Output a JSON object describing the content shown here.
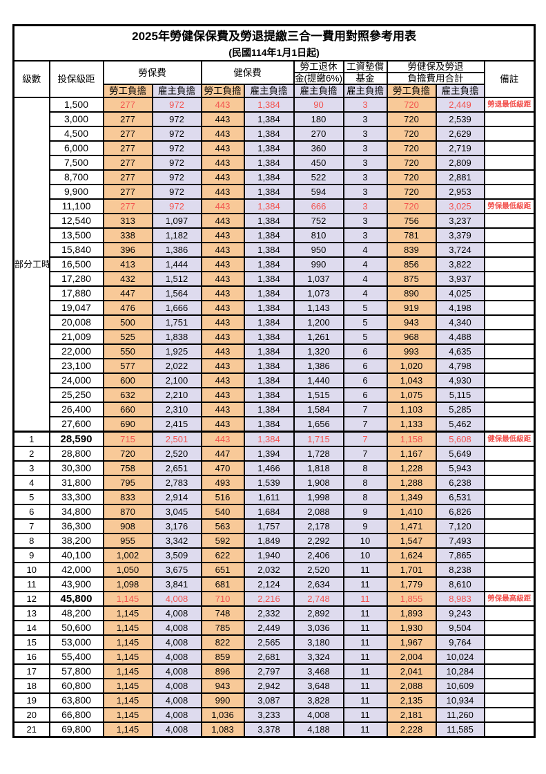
{
  "title": "2025年勞健保保費及勞退提繳三合一費用對照參考用表",
  "subtitle": "(民國114年1月1日起)",
  "header": {
    "level": "級數",
    "bracket": "投保級距",
    "labor_group": "勞保費",
    "health_group": "健保費",
    "pension_line1": "勞工退休",
    "pension_line2": "金(提繳6%)",
    "wage_line1": "工資墊償",
    "wage_line2": "基金",
    "total_line1": "勞健保及勞退",
    "total_line2": "負擔費用合計",
    "employee": "勞工負擔",
    "employer": "雇主負擔",
    "note": "備註"
  },
  "part_time_label": "部分工時",
  "colors": {
    "employee_bg": "#f8c998",
    "employer_bg": "#dedbee",
    "highlight_red": "#f2524e",
    "border": "#000000"
  },
  "rows": [
    {
      "level": "",
      "bracket": "1,500",
      "v": [
        "277",
        "972",
        "443",
        "1,384",
        "90",
        "3",
        "720",
        "2,449"
      ],
      "note": "勞退最低級距",
      "red": true
    },
    {
      "level": "",
      "bracket": "3,000",
      "v": [
        "277",
        "972",
        "443",
        "1,384",
        "180",
        "3",
        "720",
        "2,539"
      ],
      "note": ""
    },
    {
      "level": "",
      "bracket": "4,500",
      "v": [
        "277",
        "972",
        "443",
        "1,384",
        "270",
        "3",
        "720",
        "2,629"
      ],
      "note": ""
    },
    {
      "level": "",
      "bracket": "6,000",
      "v": [
        "277",
        "972",
        "443",
        "1,384",
        "360",
        "3",
        "720",
        "2,719"
      ],
      "note": ""
    },
    {
      "level": "",
      "bracket": "7,500",
      "v": [
        "277",
        "972",
        "443",
        "1,384",
        "450",
        "3",
        "720",
        "2,809"
      ],
      "note": ""
    },
    {
      "level": "",
      "bracket": "8,700",
      "v": [
        "277",
        "972",
        "443",
        "1,384",
        "522",
        "3",
        "720",
        "2,881"
      ],
      "note": ""
    },
    {
      "level": "",
      "bracket": "9,900",
      "v": [
        "277",
        "972",
        "443",
        "1,384",
        "594",
        "3",
        "720",
        "2,953"
      ],
      "note": ""
    },
    {
      "level": "",
      "bracket": "11,100",
      "v": [
        "277",
        "972",
        "443",
        "1,384",
        "666",
        "3",
        "720",
        "3,025"
      ],
      "note": "勞保最低級距",
      "red": true
    },
    {
      "level": "",
      "bracket": "12,540",
      "v": [
        "313",
        "1,097",
        "443",
        "1,384",
        "752",
        "3",
        "756",
        "3,237"
      ],
      "note": ""
    },
    {
      "level": "",
      "bracket": "13,500",
      "v": [
        "338",
        "1,182",
        "443",
        "1,384",
        "810",
        "3",
        "781",
        "3,379"
      ],
      "note": ""
    },
    {
      "level": "",
      "bracket": "15,840",
      "v": [
        "396",
        "1,386",
        "443",
        "1,384",
        "950",
        "4",
        "839",
        "3,724"
      ],
      "note": ""
    },
    {
      "level": "",
      "bracket": "16,500",
      "v": [
        "413",
        "1,444",
        "443",
        "1,384",
        "990",
        "4",
        "856",
        "3,822"
      ],
      "note": ""
    },
    {
      "level": "",
      "bracket": "17,280",
      "v": [
        "432",
        "1,512",
        "443",
        "1,384",
        "1,037",
        "4",
        "875",
        "3,937"
      ],
      "note": ""
    },
    {
      "level": "",
      "bracket": "17,880",
      "v": [
        "447",
        "1,564",
        "443",
        "1,384",
        "1,073",
        "4",
        "890",
        "4,025"
      ],
      "note": ""
    },
    {
      "level": "",
      "bracket": "19,047",
      "v": [
        "476",
        "1,666",
        "443",
        "1,384",
        "1,143",
        "5",
        "919",
        "4,198"
      ],
      "note": ""
    },
    {
      "level": "",
      "bracket": "20,008",
      "v": [
        "500",
        "1,751",
        "443",
        "1,384",
        "1,200",
        "5",
        "943",
        "4,340"
      ],
      "note": ""
    },
    {
      "level": "",
      "bracket": "21,009",
      "v": [
        "525",
        "1,838",
        "443",
        "1,384",
        "1,261",
        "5",
        "968",
        "4,488"
      ],
      "note": ""
    },
    {
      "level": "",
      "bracket": "22,000",
      "v": [
        "550",
        "1,925",
        "443",
        "1,384",
        "1,320",
        "6",
        "993",
        "4,635"
      ],
      "note": ""
    },
    {
      "level": "",
      "bracket": "23,100",
      "v": [
        "577",
        "2,022",
        "443",
        "1,384",
        "1,386",
        "6",
        "1,020",
        "4,798"
      ],
      "note": ""
    },
    {
      "level": "",
      "bracket": "24,000",
      "v": [
        "600",
        "2,100",
        "443",
        "1,384",
        "1,440",
        "6",
        "1,043",
        "4,930"
      ],
      "note": ""
    },
    {
      "level": "",
      "bracket": "25,250",
      "v": [
        "632",
        "2,210",
        "443",
        "1,384",
        "1,515",
        "6",
        "1,075",
        "5,115"
      ],
      "note": ""
    },
    {
      "level": "",
      "bracket": "26,400",
      "v": [
        "660",
        "2,310",
        "443",
        "1,384",
        "1,584",
        "7",
        "1,103",
        "5,285"
      ],
      "note": ""
    },
    {
      "level": "",
      "bracket": "27,600",
      "v": [
        "690",
        "2,415",
        "443",
        "1,384",
        "1,656",
        "7",
        "1,133",
        "5,462"
      ],
      "note": ""
    },
    {
      "level": "1",
      "bracket": "28,590",
      "v": [
        "715",
        "2,501",
        "443",
        "1,384",
        "1,715",
        "7",
        "1,158",
        "5,608"
      ],
      "note": "健保最低級距",
      "red": true,
      "bold": true,
      "thick_top": true
    },
    {
      "level": "2",
      "bracket": "28,800",
      "v": [
        "720",
        "2,520",
        "447",
        "1,394",
        "1,728",
        "7",
        "1,167",
        "5,649"
      ],
      "note": ""
    },
    {
      "level": "3",
      "bracket": "30,300",
      "v": [
        "758",
        "2,651",
        "470",
        "1,466",
        "1,818",
        "8",
        "1,228",
        "5,943"
      ],
      "note": ""
    },
    {
      "level": "4",
      "bracket": "31,800",
      "v": [
        "795",
        "2,783",
        "493",
        "1,539",
        "1,908",
        "8",
        "1,288",
        "6,238"
      ],
      "note": ""
    },
    {
      "level": "5",
      "bracket": "33,300",
      "v": [
        "833",
        "2,914",
        "516",
        "1,611",
        "1,998",
        "8",
        "1,349",
        "6,531"
      ],
      "note": ""
    },
    {
      "level": "6",
      "bracket": "34,800",
      "v": [
        "870",
        "3,045",
        "540",
        "1,684",
        "2,088",
        "9",
        "1,410",
        "6,826"
      ],
      "note": ""
    },
    {
      "level": "7",
      "bracket": "36,300",
      "v": [
        "908",
        "3,176",
        "563",
        "1,757",
        "2,178",
        "9",
        "1,471",
        "7,120"
      ],
      "note": ""
    },
    {
      "level": "8",
      "bracket": "38,200",
      "v": [
        "955",
        "3,342",
        "592",
        "1,849",
        "2,292",
        "10",
        "1,547",
        "7,493"
      ],
      "note": ""
    },
    {
      "level": "9",
      "bracket": "40,100",
      "v": [
        "1,002",
        "3,509",
        "622",
        "1,940",
        "2,406",
        "10",
        "1,624",
        "7,865"
      ],
      "note": ""
    },
    {
      "level": "10",
      "bracket": "42,000",
      "v": [
        "1,050",
        "3,675",
        "651",
        "2,032",
        "2,520",
        "11",
        "1,701",
        "8,238"
      ],
      "note": ""
    },
    {
      "level": "11",
      "bracket": "43,900",
      "v": [
        "1,098",
        "3,841",
        "681",
        "2,124",
        "2,634",
        "11",
        "1,779",
        "8,610"
      ],
      "note": ""
    },
    {
      "level": "12",
      "bracket": "45,800",
      "v": [
        "1,145",
        "4,008",
        "710",
        "2,216",
        "2,748",
        "11",
        "1,855",
        "8,983"
      ],
      "note": "勞保最高級距",
      "red": true,
      "bold": true
    },
    {
      "level": "13",
      "bracket": "48,200",
      "v": [
        "1,145",
        "4,008",
        "748",
        "2,332",
        "2,892",
        "11",
        "1,893",
        "9,243"
      ],
      "note": ""
    },
    {
      "level": "14",
      "bracket": "50,600",
      "v": [
        "1,145",
        "4,008",
        "785",
        "2,449",
        "3,036",
        "11",
        "1,930",
        "9,504"
      ],
      "note": ""
    },
    {
      "level": "15",
      "bracket": "53,000",
      "v": [
        "1,145",
        "4,008",
        "822",
        "2,565",
        "3,180",
        "11",
        "1,967",
        "9,764"
      ],
      "note": ""
    },
    {
      "level": "16",
      "bracket": "55,400",
      "v": [
        "1,145",
        "4,008",
        "859",
        "2,681",
        "3,324",
        "11",
        "2,004",
        "10,024"
      ],
      "note": ""
    },
    {
      "level": "17",
      "bracket": "57,800",
      "v": [
        "1,145",
        "4,008",
        "896",
        "2,797",
        "3,468",
        "11",
        "2,041",
        "10,284"
      ],
      "note": ""
    },
    {
      "level": "18",
      "bracket": "60,800",
      "v": [
        "1,145",
        "4,008",
        "943",
        "2,942",
        "3,648",
        "11",
        "2,088",
        "10,609"
      ],
      "note": ""
    },
    {
      "level": "19",
      "bracket": "63,800",
      "v": [
        "1,145",
        "4,008",
        "990",
        "3,087",
        "3,828",
        "11",
        "2,135",
        "10,934"
      ],
      "note": ""
    },
    {
      "level": "20",
      "bracket": "66,800",
      "v": [
        "1,145",
        "4,008",
        "1,036",
        "3,233",
        "4,008",
        "11",
        "2,181",
        "11,260"
      ],
      "note": ""
    },
    {
      "level": "21",
      "bracket": "69,800",
      "v": [
        "1,145",
        "4,008",
        "1,083",
        "3,378",
        "4,188",
        "11",
        "2,228",
        "11,585"
      ],
      "note": ""
    }
  ]
}
